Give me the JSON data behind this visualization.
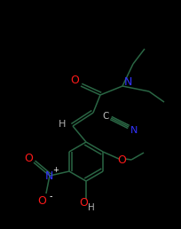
{
  "bg_color": "#000000",
  "bond_color": "#2a6644",
  "bond_width": 1.1,
  "atom_colors": {
    "N": "#3333ff",
    "O": "#ff1a1a",
    "H": "#b0b0b0",
    "C": "#c0c0c0"
  },
  "fig_bg": "#000000",
  "scale": 3.0
}
